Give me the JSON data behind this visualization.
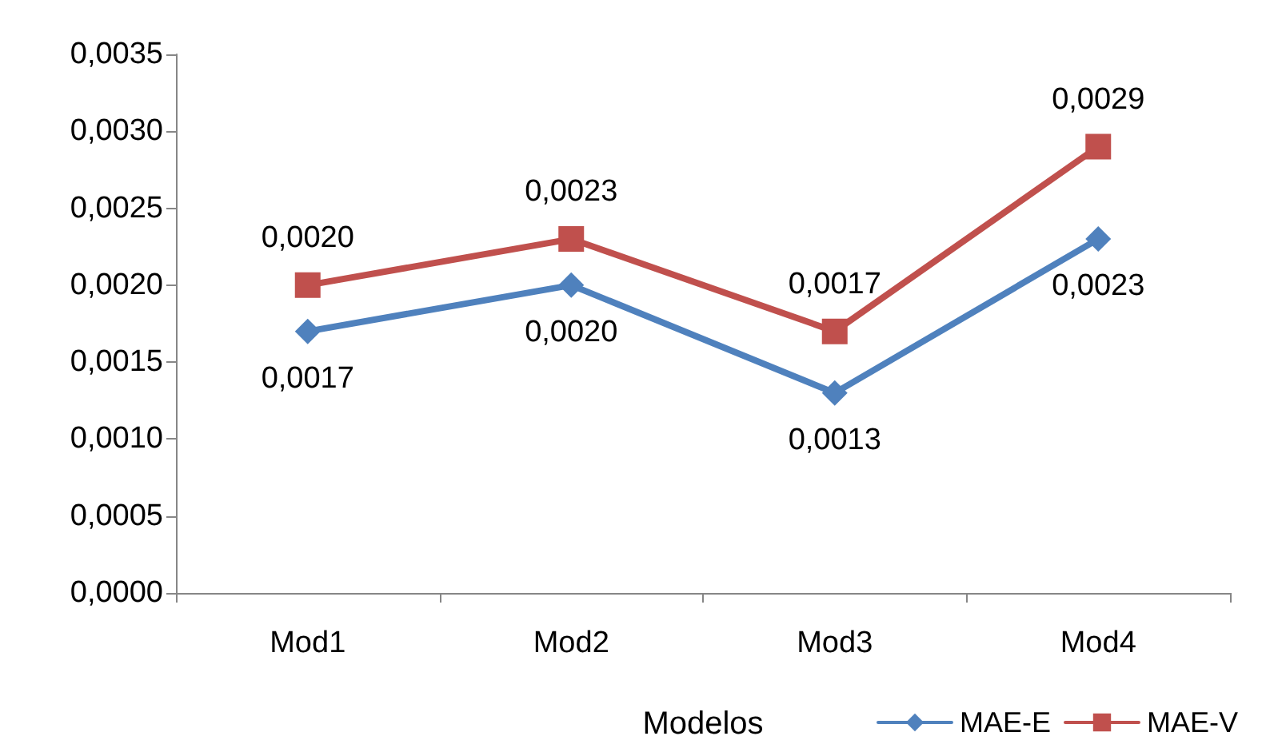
{
  "chart_data": {
    "type": "line",
    "xlabel": "Modelos",
    "categories": [
      "Mod1",
      "Mod2",
      "Mod3",
      "Mod4"
    ],
    "series": [
      {
        "name": "MAE-E",
        "color": "#4f81bd",
        "marker": "diamond",
        "values": [
          0.0017,
          0.002,
          0.0013,
          0.0023
        ],
        "value_labels": [
          "0,0017",
          "0,0020",
          "0,0013",
          "0,0023"
        ]
      },
      {
        "name": "MAE-V",
        "color": "#c0504d",
        "marker": "square",
        "values": [
          0.002,
          0.0023,
          0.0017,
          0.0029
        ],
        "value_labels": [
          "0,0020",
          "0,0023",
          "0,0017",
          "0,0029"
        ]
      }
    ],
    "ylim": [
      0,
      0.0035
    ],
    "yticks": [
      {
        "value": 0,
        "label": "0,0000"
      },
      {
        "value": 0.0005,
        "label": "0,0005"
      },
      {
        "value": 0.001,
        "label": "0,0010"
      },
      {
        "value": 0.0015,
        "label": "0,0015"
      },
      {
        "value": 0.002,
        "label": "0,0020"
      },
      {
        "value": 0.0025,
        "label": "0,0025"
      },
      {
        "value": 0.003,
        "label": "0,0030"
      },
      {
        "value": 0.0035,
        "label": "0,0035"
      }
    ],
    "grid": false,
    "legend": "bottom right",
    "line_style": "solid"
  }
}
